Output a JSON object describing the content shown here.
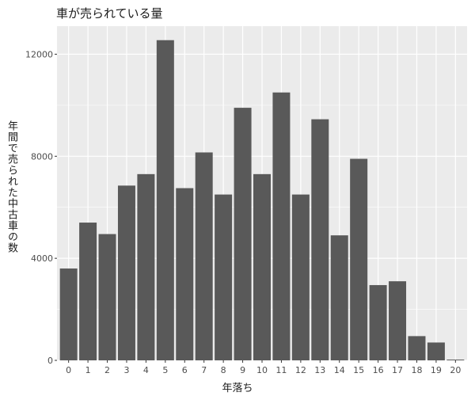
{
  "chart_data": {
    "type": "bar",
    "title": "車が売られている量",
    "xlabel": "年落ち",
    "ylabel": "年間で売られた中古車の数",
    "categories": [
      "0",
      "1",
      "2",
      "3",
      "4",
      "5",
      "6",
      "7",
      "8",
      "9",
      "10",
      "11",
      "12",
      "13",
      "14",
      "15",
      "16",
      "17",
      "18",
      "19",
      "20"
    ],
    "values": [
      3600,
      5400,
      4950,
      6850,
      7300,
      12550,
      6750,
      8150,
      6500,
      9900,
      7300,
      10500,
      6500,
      9450,
      4900,
      7900,
      2950,
      3100,
      950,
      700,
      30
    ],
    "ylim": [
      0,
      13100
    ],
    "yticks": [
      0,
      4000,
      8000,
      12000
    ],
    "ytick_labels": [
      "0",
      "4000",
      "8000",
      "12000"
    ],
    "bar_color": "#595959",
    "panel_color": "#ebebeb",
    "grid_color": "#ffffff",
    "grid": true
  }
}
